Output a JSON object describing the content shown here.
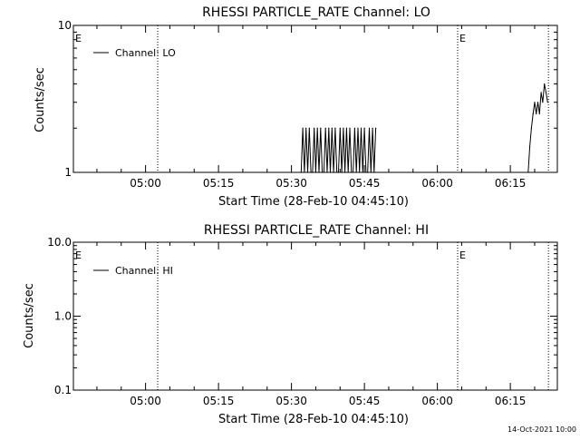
{
  "colors": {
    "background": "#ffffff",
    "foreground": "#000000"
  },
  "footer": {
    "date": "14-Oct-2021 10:00"
  },
  "chart_data": [
    {
      "type": "line",
      "title": "RHESSI PARTICLE_RATE Channel: LO",
      "xlabel": "Start Time (28-Feb-10 04:45:10)",
      "ylabel": "Counts/sec",
      "y_scale": "log",
      "ylim": [
        1,
        10
      ],
      "y_tick_labels": [
        "1",
        "10"
      ],
      "xlim": [
        "04:45:10",
        "06:24:40"
      ],
      "x_ticks": [
        "05:00",
        "05:15",
        "05:30",
        "05:45",
        "06:00",
        "06:15"
      ],
      "grid": false,
      "legend_position": "top-left",
      "series": [
        {
          "name": "Channel: LO",
          "x": [
            "05:32:00",
            "05:32:20",
            "05:32:40",
            "05:33:00",
            "05:33:20",
            "05:33:40",
            "05:34:00",
            "05:34:20",
            "05:34:40",
            "05:35:00",
            "05:35:20",
            "05:35:40",
            "05:36:00",
            "05:36:20",
            "05:36:40",
            "05:37:00",
            "05:37:20",
            "05:37:40",
            "05:38:00",
            "05:38:20",
            "05:38:40",
            "05:39:00",
            "05:39:20",
            "05:39:40",
            "05:40:00",
            "05:40:20",
            "05:40:40",
            "05:41:00",
            "05:41:20",
            "05:41:40",
            "05:42:00",
            "05:42:20",
            "05:42:40",
            "05:43:00",
            "05:43:20",
            "05:43:40",
            "05:44:00",
            "05:44:20",
            "05:44:40",
            "05:45:00",
            "05:45:20",
            "05:45:40",
            "05:46:00",
            "05:46:20",
            "05:46:40",
            "05:47:00",
            "05:47:20",
            "06:18:40",
            "06:19:00",
            "06:19:20",
            "06:19:40",
            "06:20:00",
            "06:20:20",
            "06:20:40",
            "06:21:00",
            "06:21:20",
            "06:21:40",
            "06:22:00",
            "06:22:20",
            "06:22:40"
          ],
          "values": [
            1,
            2,
            1,
            2,
            1,
            2,
            1,
            1,
            2,
            1,
            2,
            1,
            2,
            1,
            1,
            2,
            1,
            2,
            1,
            2,
            1,
            2,
            1,
            1,
            2,
            1,
            2,
            1,
            2,
            1,
            2,
            1,
            1,
            2,
            1,
            2,
            1,
            2,
            1,
            2,
            1,
            1,
            2,
            1,
            2,
            1,
            2,
            1,
            1.5,
            2,
            2.5,
            3,
            2.5,
            3,
            2.5,
            3.5,
            3,
            4,
            3.5,
            3
          ]
        }
      ],
      "annotations": [
        {
          "label": "E",
          "x": "04:45:10"
        },
        {
          "label": "E",
          "x": "06:04:10"
        }
      ],
      "vertical_lines": [
        "05:02:30",
        "06:04:10",
        "06:22:50"
      ]
    },
    {
      "type": "line",
      "title": "RHESSI PARTICLE_RATE Channel: HI",
      "xlabel": "Start Time (28-Feb-10 04:45:10)",
      "ylabel": "Counts/sec",
      "y_scale": "log",
      "ylim": [
        0.1,
        10
      ],
      "y_tick_labels": [
        "0.1",
        "1.0",
        "10.0"
      ],
      "xlim": [
        "04:45:10",
        "06:24:40"
      ],
      "x_ticks": [
        "05:00",
        "05:15",
        "05:30",
        "05:45",
        "06:00",
        "06:15"
      ],
      "grid": false,
      "legend_position": "top-left",
      "series": [
        {
          "name": "Channel: HI",
          "x": [],
          "values": []
        }
      ],
      "annotations": [
        {
          "label": "E",
          "x": "04:45:10"
        },
        {
          "label": "E",
          "x": "06:04:10"
        }
      ],
      "vertical_lines": [
        "05:02:30",
        "06:04:10",
        "06:22:50"
      ]
    }
  ]
}
